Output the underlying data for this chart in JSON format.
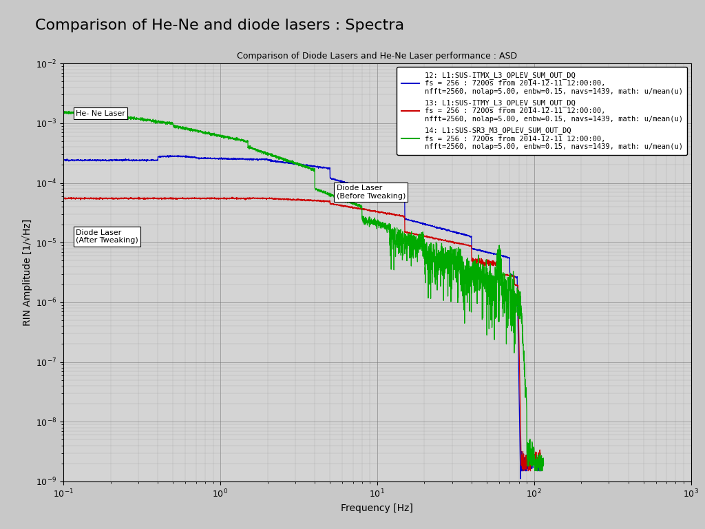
{
  "title_main": "Comparison of He-Ne and diode lasers : Spectra",
  "title_plot": "Comparison of Diode Lasers and He-Ne Laser performance : ASD",
  "xlabel": "Frequency [Hz]",
  "ylabel": "RIN Amplitude [1/√Hz]",
  "xlim": [
    0.1,
    1000
  ],
  "ylim": [
    1e-09,
    0.01
  ],
  "background_color": "#c8c8c8",
  "plot_bg_color": "#d4d4d4",
  "legend_entries": [
    "12: L1:SUS-ITMX_L3_OPLEV_SUM_OUT_DQ\nfs = 256 : 7200s from 2014-12-11 12:00:00,\nnfft=2560, nolap=5.00, enbw=0.15, navs=1439, math: u/mean(u)",
    "13: L1:SUS-ITMY_L3_OPLEV_SUM_OUT_DQ\nfs = 256 : 7200s from 2014-12-11 12:00:00,\nnfft=2560, nolap=5.00, enbw=0.15, navs=1439, math: u/mean(u)",
    "14: L1:SUS-SR3_M3_OPLEV_SUM_OUT_DQ\nfs = 256 : 7200s from 2014-12-11 12:00:00,\nnfft=2560, nolap=5.00, enbw=0.15, navs=1439, math: u/mean(u)"
  ],
  "line_colors": [
    "#0000cc",
    "#cc0000",
    "#00aa00"
  ],
  "annotation_hene": "He- Ne Laser",
  "annotation_diode_after": "Diode Laser\n(After Tweaking)",
  "annotation_diode_before": "Diode Laser\n(Before Tweaking)",
  "title_fontsize": 16,
  "plot_title_fontsize": 9,
  "axis_label_fontsize": 10,
  "tick_fontsize": 9,
  "legend_fontsize": 7.5
}
